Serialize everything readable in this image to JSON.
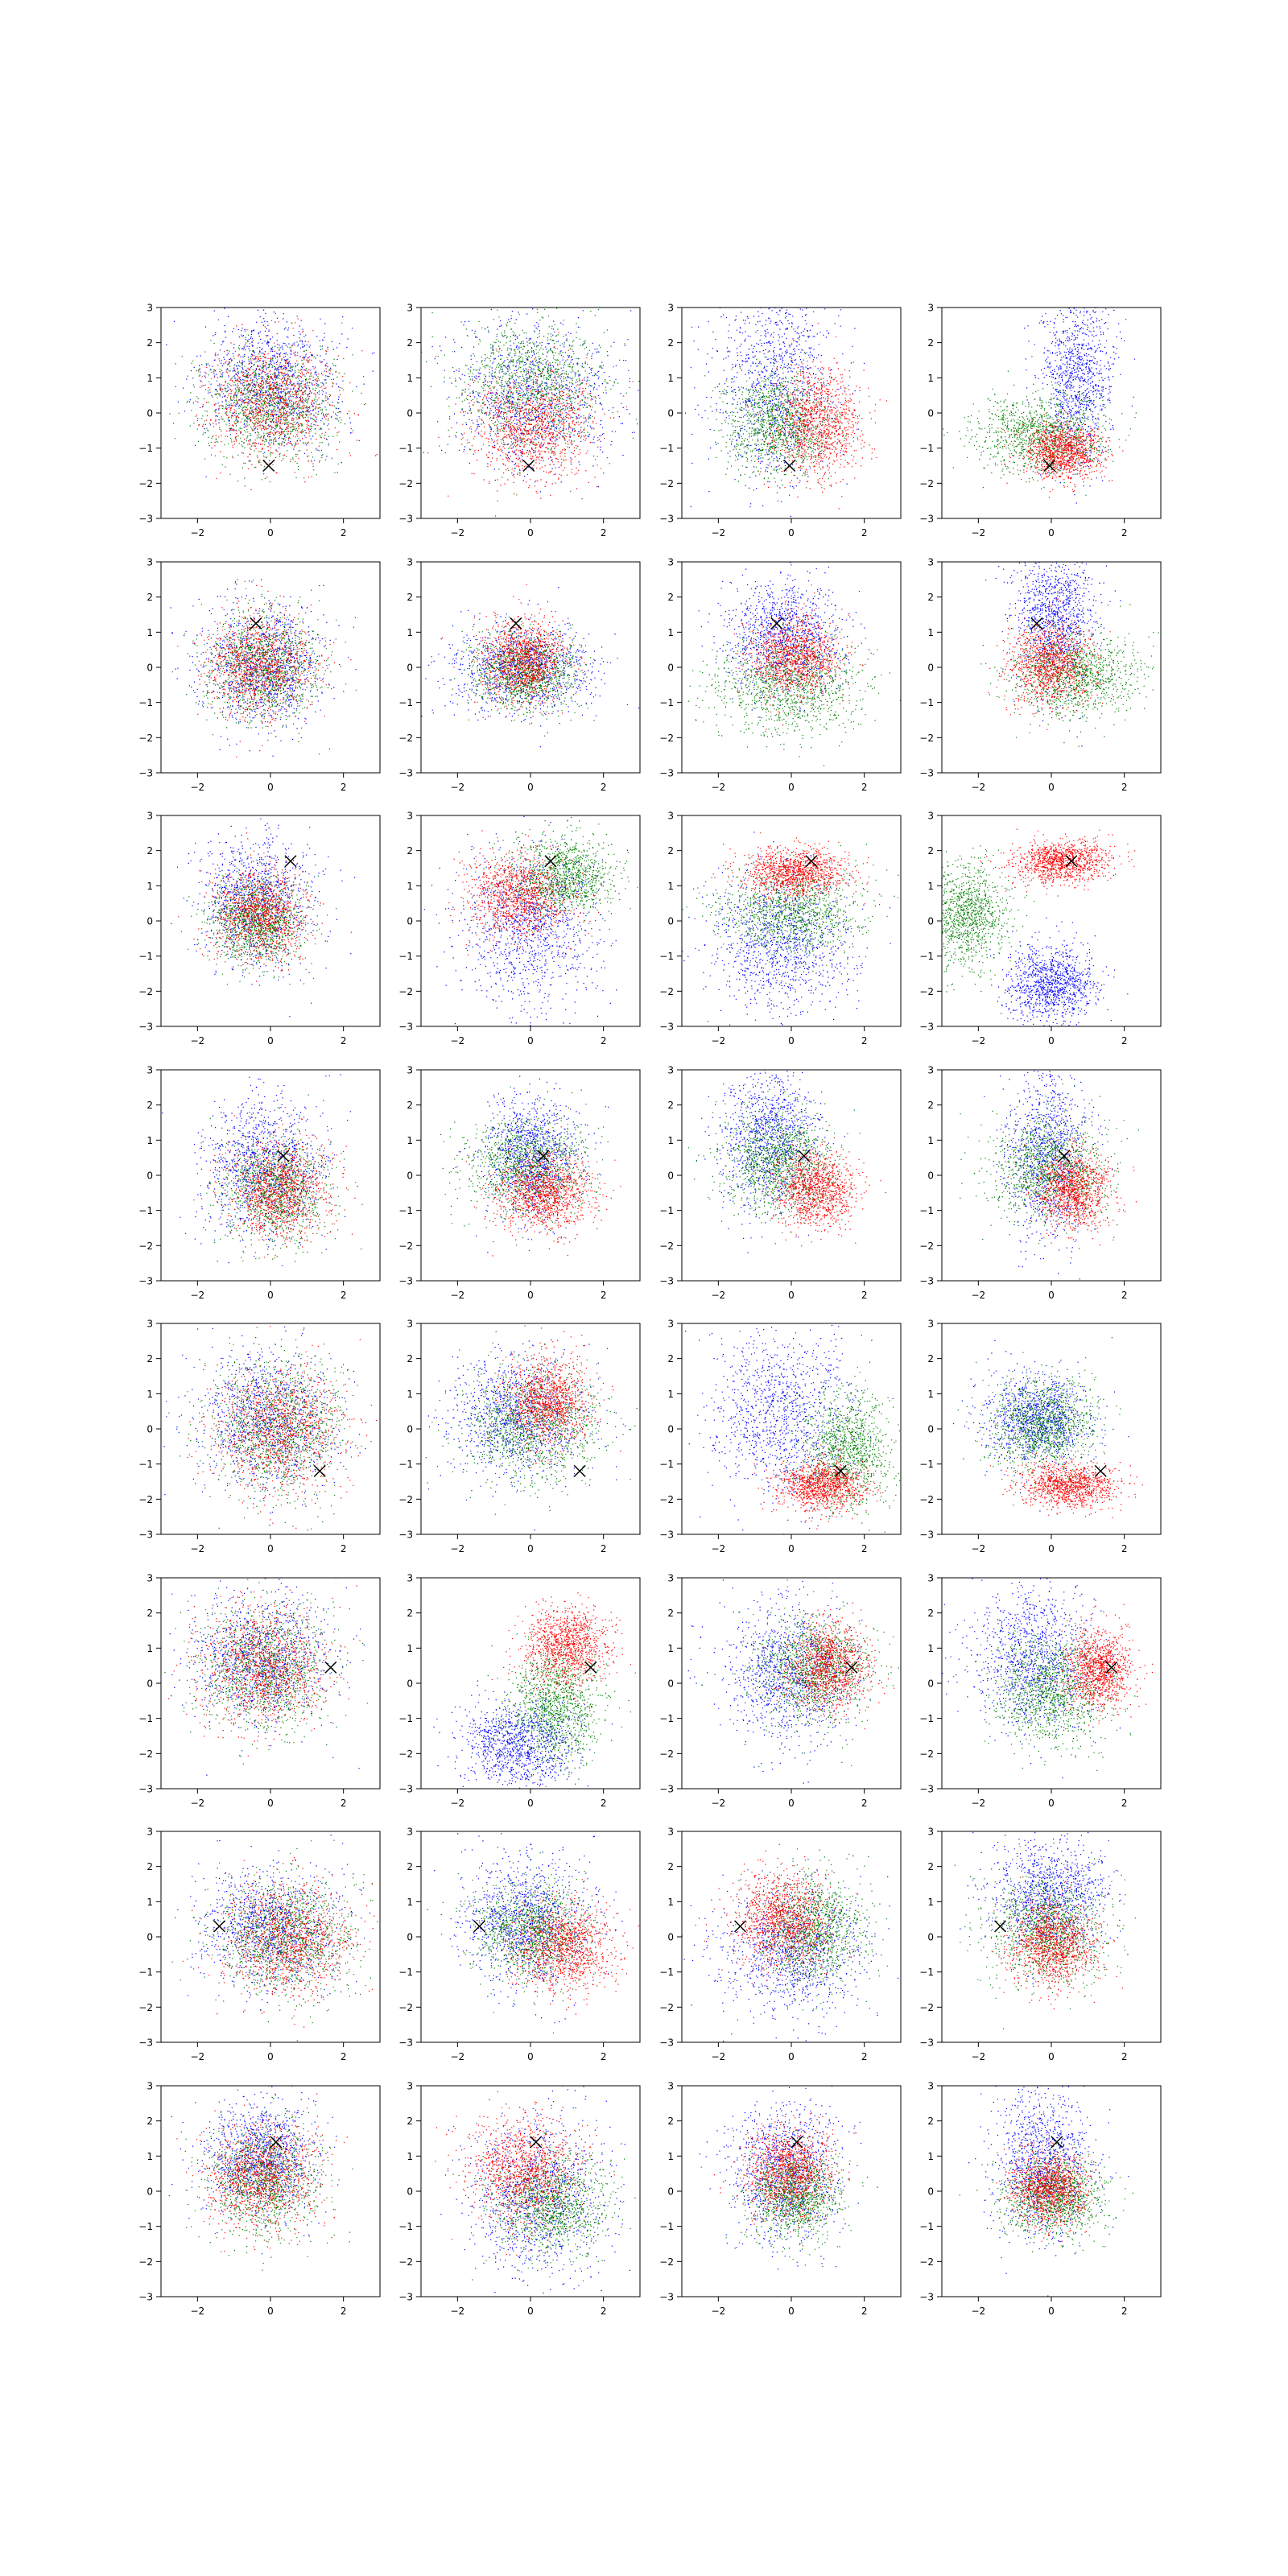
{
  "chart_data": {
    "type": "scatter",
    "layout": {
      "rows": 8,
      "cols": 4
    },
    "xlim": [
      -3,
      3
    ],
    "ylim": [
      -3,
      3
    ],
    "xticks": [
      -2,
      0,
      2
    ],
    "yticks": [
      -3,
      -2,
      -1,
      0,
      1,
      2,
      3
    ],
    "grid": false,
    "series_colors": {
      "blue": "#0000ff",
      "green": "#008000",
      "red": "#ff0000"
    },
    "marker_color": "#000000",
    "points_per_cluster": 1100,
    "panels": [
      {
        "marker": [
          -0.05,
          -1.5
        ],
        "clusters": [
          {
            "color": "blue",
            "cx": 0.0,
            "cy": 0.9,
            "sx": 0.9,
            "sy": 0.9
          },
          {
            "color": "green",
            "cx": 0.0,
            "cy": 0.2,
            "sx": 0.9,
            "sy": 0.8
          },
          {
            "color": "red",
            "cx": 0.0,
            "cy": 0.3,
            "sx": 0.85,
            "sy": 0.8
          }
        ]
      },
      {
        "marker": [
          -0.05,
          -1.5
        ],
        "clusters": [
          {
            "color": "blue",
            "cx": 0.1,
            "cy": 0.5,
            "sx": 1.1,
            "sy": 1.0
          },
          {
            "color": "green",
            "cx": 0.0,
            "cy": 0.9,
            "sx": 1.0,
            "sy": 0.9
          },
          {
            "color": "red",
            "cx": 0.0,
            "cy": -0.4,
            "sx": 0.85,
            "sy": 0.75
          }
        ]
      },
      {
        "marker": [
          -0.05,
          -1.5
        ],
        "clusters": [
          {
            "color": "blue",
            "cx": -0.5,
            "cy": 0.9,
            "sx": 0.8,
            "sy": 1.4
          },
          {
            "color": "green",
            "cx": -0.4,
            "cy": -0.3,
            "sx": 0.7,
            "sy": 0.7
          },
          {
            "color": "red",
            "cx": 0.7,
            "cy": -0.3,
            "sx": 0.6,
            "sy": 0.75
          }
        ]
      },
      {
        "marker": [
          -0.05,
          -1.5
        ],
        "clusters": [
          {
            "color": "blue",
            "cx": 0.7,
            "cy": 1.2,
            "sx": 0.5,
            "sy": 1.3
          },
          {
            "color": "green",
            "cx": -0.3,
            "cy": -0.6,
            "sx": 0.85,
            "sy": 0.55
          },
          {
            "color": "red",
            "cx": 0.3,
            "cy": -1.1,
            "sx": 0.55,
            "sy": 0.4
          }
        ]
      },
      {
        "marker": [
          -0.4,
          1.25
        ],
        "clusters": [
          {
            "color": "blue",
            "cx": -0.2,
            "cy": 0.1,
            "sx": 0.85,
            "sy": 0.85
          },
          {
            "color": "green",
            "cx": -0.2,
            "cy": 0.0,
            "sx": 0.75,
            "sy": 0.75
          },
          {
            "color": "red",
            "cx": -0.3,
            "cy": 0.1,
            "sx": 0.75,
            "sy": 0.75
          }
        ]
      },
      {
        "marker": [
          -0.4,
          1.25
        ],
        "clusters": [
          {
            "color": "blue",
            "cx": -0.2,
            "cy": 0.0,
            "sx": 1.0,
            "sy": 0.6
          },
          {
            "color": "green",
            "cx": -0.2,
            "cy": -0.1,
            "sx": 0.7,
            "sy": 0.55
          },
          {
            "color": "red",
            "cx": -0.2,
            "cy": 0.2,
            "sx": 0.55,
            "sy": 0.6
          }
        ]
      },
      {
        "marker": [
          -0.4,
          1.25
        ],
        "clusters": [
          {
            "color": "blue",
            "cx": -0.2,
            "cy": 0.9,
            "sx": 0.8,
            "sy": 0.8
          },
          {
            "color": "green",
            "cx": -0.1,
            "cy": -0.5,
            "sx": 1.0,
            "sy": 0.7
          },
          {
            "color": "red",
            "cx": 0.1,
            "cy": 0.3,
            "sx": 0.6,
            "sy": 0.55
          }
        ]
      },
      {
        "marker": [
          -0.4,
          1.25
        ],
        "clusters": [
          {
            "color": "blue",
            "cx": 0.1,
            "cy": 1.5,
            "sx": 0.55,
            "sy": 1.0
          },
          {
            "color": "green",
            "cx": 0.6,
            "cy": -0.2,
            "sx": 0.9,
            "sy": 0.6
          },
          {
            "color": "red",
            "cx": 0.0,
            "cy": 0.1,
            "sx": 0.55,
            "sy": 0.6
          }
        ]
      },
      {
        "marker": [
          0.55,
          1.7
        ],
        "clusters": [
          {
            "color": "blue",
            "cx": -0.4,
            "cy": 0.6,
            "sx": 0.75,
            "sy": 0.9
          },
          {
            "color": "green",
            "cx": -0.4,
            "cy": 0.0,
            "sx": 0.65,
            "sy": 0.6
          },
          {
            "color": "red",
            "cx": -0.3,
            "cy": 0.2,
            "sx": 0.65,
            "sy": 0.65
          }
        ]
      },
      {
        "marker": [
          0.55,
          1.7
        ],
        "clusters": [
          {
            "color": "blue",
            "cx": 0.0,
            "cy": -0.2,
            "sx": 0.9,
            "sy": 1.1
          },
          {
            "color": "green",
            "cx": 0.9,
            "cy": 1.3,
            "sx": 0.7,
            "sy": 0.55
          },
          {
            "color": "red",
            "cx": -0.3,
            "cy": 0.7,
            "sx": 0.7,
            "sy": 0.6
          }
        ]
      },
      {
        "marker": [
          0.55,
          1.7
        ],
        "clusters": [
          {
            "color": "blue",
            "cx": -0.3,
            "cy": -0.6,
            "sx": 1.0,
            "sy": 1.0
          },
          {
            "color": "green",
            "cx": 0.0,
            "cy": 0.3,
            "sx": 1.0,
            "sy": 0.6
          },
          {
            "color": "red",
            "cx": 0.1,
            "cy": 1.4,
            "sx": 0.7,
            "sy": 0.35
          }
        ]
      },
      {
        "marker": [
          0.55,
          1.7
        ],
        "clusters": [
          {
            "color": "blue",
            "cx": 0.0,
            "cy": -1.8,
            "sx": 0.6,
            "sy": 0.55
          },
          {
            "color": "green",
            "cx": -2.3,
            "cy": 0.2,
            "sx": 0.55,
            "sy": 0.75
          },
          {
            "color": "red",
            "cx": 0.3,
            "cy": 1.7,
            "sx": 0.65,
            "sy": 0.3
          }
        ]
      },
      {
        "marker": [
          0.35,
          0.55
        ],
        "clusters": [
          {
            "color": "blue",
            "cx": -0.2,
            "cy": 0.3,
            "sx": 0.85,
            "sy": 0.95
          },
          {
            "color": "green",
            "cx": 0.1,
            "cy": -0.4,
            "sx": 0.7,
            "sy": 0.7
          },
          {
            "color": "red",
            "cx": 0.2,
            "cy": -0.4,
            "sx": 0.7,
            "sy": 0.7
          }
        ]
      },
      {
        "marker": [
          0.35,
          0.55
        ],
        "clusters": [
          {
            "color": "blue",
            "cx": 0.0,
            "cy": 0.6,
            "sx": 0.65,
            "sy": 0.8
          },
          {
            "color": "green",
            "cx": -0.1,
            "cy": 0.3,
            "sx": 0.8,
            "sy": 0.65
          },
          {
            "color": "red",
            "cx": 0.4,
            "cy": -0.5,
            "sx": 0.65,
            "sy": 0.55
          }
        ]
      },
      {
        "marker": [
          0.35,
          0.55
        ],
        "clusters": [
          {
            "color": "blue",
            "cx": -0.6,
            "cy": 1.0,
            "sx": 0.65,
            "sy": 1.0
          },
          {
            "color": "green",
            "cx": -0.4,
            "cy": 0.4,
            "sx": 0.75,
            "sy": 0.7
          },
          {
            "color": "red",
            "cx": 0.7,
            "cy": -0.4,
            "sx": 0.55,
            "sy": 0.55
          }
        ]
      },
      {
        "marker": [
          0.35,
          0.55
        ],
        "clusters": [
          {
            "color": "blue",
            "cx": -0.1,
            "cy": 0.6,
            "sx": 0.55,
            "sy": 1.2
          },
          {
            "color": "green",
            "cx": -0.1,
            "cy": 0.2,
            "sx": 0.8,
            "sy": 0.7
          },
          {
            "color": "red",
            "cx": 0.6,
            "cy": -0.4,
            "sx": 0.5,
            "sy": 0.55
          }
        ]
      },
      {
        "marker": [
          1.35,
          -1.2
        ],
        "clusters": [
          {
            "color": "blue",
            "cx": -0.1,
            "cy": 0.2,
            "sx": 0.95,
            "sy": 0.95
          },
          {
            "color": "green",
            "cx": 0.2,
            "cy": 0.0,
            "sx": 0.9,
            "sy": 0.9
          },
          {
            "color": "red",
            "cx": 0.2,
            "cy": 0.0,
            "sx": 0.9,
            "sy": 0.9
          }
        ]
      },
      {
        "marker": [
          1.35,
          -1.2
        ],
        "clusters": [
          {
            "color": "blue",
            "cx": -0.4,
            "cy": 0.3,
            "sx": 0.9,
            "sy": 0.85
          },
          {
            "color": "green",
            "cx": 0.1,
            "cy": 0.1,
            "sx": 0.9,
            "sy": 0.8
          },
          {
            "color": "red",
            "cx": 0.5,
            "cy": 0.8,
            "sx": 0.55,
            "sy": 0.6
          }
        ]
      },
      {
        "marker": [
          1.35,
          -1.2
        ],
        "clusters": [
          {
            "color": "blue",
            "cx": -0.3,
            "cy": 0.5,
            "sx": 0.95,
            "sy": 1.2
          },
          {
            "color": "green",
            "cx": 1.5,
            "cy": -0.6,
            "sx": 0.6,
            "sy": 0.8
          },
          {
            "color": "red",
            "cx": 0.8,
            "cy": -1.6,
            "sx": 0.6,
            "sy": 0.35
          }
        ]
      },
      {
        "marker": [
          1.35,
          -1.2
        ],
        "clusters": [
          {
            "color": "blue",
            "cx": -0.4,
            "cy": 0.3,
            "sx": 0.7,
            "sy": 0.65
          },
          {
            "color": "green",
            "cx": -0.2,
            "cy": 0.1,
            "sx": 0.7,
            "sy": 0.65
          },
          {
            "color": "red",
            "cx": 0.5,
            "cy": -1.6,
            "sx": 0.65,
            "sy": 0.3
          }
        ]
      },
      {
        "marker": [
          1.65,
          0.45
        ],
        "clusters": [
          {
            "color": "blue",
            "cx": -0.3,
            "cy": 0.7,
            "sx": 0.9,
            "sy": 0.9
          },
          {
            "color": "green",
            "cx": -0.1,
            "cy": 0.4,
            "sx": 0.85,
            "sy": 0.85
          },
          {
            "color": "red",
            "cx": -0.2,
            "cy": 0.5,
            "sx": 0.85,
            "sy": 0.85
          }
        ]
      },
      {
        "marker": [
          1.65,
          0.45
        ],
        "clusters": [
          {
            "color": "blue",
            "cx": -0.3,
            "cy": -1.7,
            "sx": 0.8,
            "sy": 0.6
          },
          {
            "color": "green",
            "cx": 0.7,
            "cy": -0.6,
            "sx": 0.65,
            "sy": 0.8
          },
          {
            "color": "red",
            "cx": 1.0,
            "cy": 1.1,
            "sx": 0.6,
            "sy": 0.55
          }
        ]
      },
      {
        "marker": [
          1.65,
          0.45
        ],
        "clusters": [
          {
            "color": "blue",
            "cx": -0.1,
            "cy": 0.3,
            "sx": 0.9,
            "sy": 1.0
          },
          {
            "color": "green",
            "cx": 0.6,
            "cy": 0.4,
            "sx": 0.8,
            "sy": 0.75
          },
          {
            "color": "red",
            "cx": 1.0,
            "cy": 0.5,
            "sx": 0.55,
            "sy": 0.6
          }
        ]
      },
      {
        "marker": [
          1.65,
          0.45
        ],
        "clusters": [
          {
            "color": "blue",
            "cx": -0.5,
            "cy": 0.7,
            "sx": 0.8,
            "sy": 1.0
          },
          {
            "color": "green",
            "cx": 0.0,
            "cy": -0.2,
            "sx": 0.75,
            "sy": 0.75
          },
          {
            "color": "red",
            "cx": 1.3,
            "cy": 0.4,
            "sx": 0.45,
            "sy": 0.55
          }
        ]
      },
      {
        "marker": [
          -1.4,
          0.3
        ],
        "clusters": [
          {
            "color": "blue",
            "cx": 0.0,
            "cy": 0.3,
            "sx": 0.95,
            "sy": 0.85
          },
          {
            "color": "green",
            "cx": 0.4,
            "cy": 0.0,
            "sx": 0.9,
            "sy": 0.8
          },
          {
            "color": "red",
            "cx": 0.5,
            "cy": -0.1,
            "sx": 0.85,
            "sy": 0.8
          }
        ]
      },
      {
        "marker": [
          -1.4,
          0.3
        ],
        "clusters": [
          {
            "color": "blue",
            "cx": -0.1,
            "cy": 0.5,
            "sx": 0.85,
            "sy": 0.95
          },
          {
            "color": "green",
            "cx": 0.0,
            "cy": 0.2,
            "sx": 0.8,
            "sy": 0.7
          },
          {
            "color": "red",
            "cx": 0.9,
            "cy": -0.3,
            "sx": 0.7,
            "sy": 0.6
          }
        ]
      },
      {
        "marker": [
          -1.4,
          0.3
        ],
        "clusters": [
          {
            "color": "blue",
            "cx": 0.0,
            "cy": -0.4,
            "sx": 0.95,
            "sy": 0.9
          },
          {
            "color": "green",
            "cx": 0.6,
            "cy": 0.2,
            "sx": 0.7,
            "sy": 0.75
          },
          {
            "color": "red",
            "cx": -0.3,
            "cy": 0.5,
            "sx": 0.65,
            "sy": 0.65
          }
        ]
      },
      {
        "marker": [
          -1.4,
          0.3
        ],
        "clusters": [
          {
            "color": "blue",
            "cx": 0.0,
            "cy": 1.2,
            "sx": 0.8,
            "sy": 0.8
          },
          {
            "color": "green",
            "cx": -0.1,
            "cy": 0.2,
            "sx": 0.8,
            "sy": 0.7
          },
          {
            "color": "red",
            "cx": 0.0,
            "cy": -0.2,
            "sx": 0.55,
            "sy": 0.6
          }
        ]
      },
      {
        "marker": [
          0.15,
          1.4
        ],
        "clusters": [
          {
            "color": "blue",
            "cx": -0.3,
            "cy": 1.0,
            "sx": 0.75,
            "sy": 0.8
          },
          {
            "color": "green",
            "cx": -0.2,
            "cy": 0.3,
            "sx": 0.75,
            "sy": 0.75
          },
          {
            "color": "red",
            "cx": -0.2,
            "cy": 0.4,
            "sx": 0.75,
            "sy": 0.75
          }
        ]
      },
      {
        "marker": [
          0.15,
          1.4
        ],
        "clusters": [
          {
            "color": "blue",
            "cx": 0.2,
            "cy": -0.2,
            "sx": 0.9,
            "sy": 1.1
          },
          {
            "color": "green",
            "cx": 0.6,
            "cy": -0.4,
            "sx": 0.75,
            "sy": 0.7
          },
          {
            "color": "red",
            "cx": -0.2,
            "cy": 0.6,
            "sx": 0.75,
            "sy": 0.75
          }
        ]
      },
      {
        "marker": [
          0.15,
          1.4
        ],
        "clusters": [
          {
            "color": "blue",
            "cx": -0.2,
            "cy": 0.6,
            "sx": 0.75,
            "sy": 1.0
          },
          {
            "color": "green",
            "cx": 0.1,
            "cy": -0.1,
            "sx": 0.6,
            "sy": 0.6
          },
          {
            "color": "red",
            "cx": -0.1,
            "cy": 0.6,
            "sx": 0.6,
            "sy": 0.6
          }
        ]
      },
      {
        "marker": [
          0.15,
          1.4
        ],
        "clusters": [
          {
            "color": "blue",
            "cx": -0.2,
            "cy": 0.9,
            "sx": 0.65,
            "sy": 1.1
          },
          {
            "color": "green",
            "cx": 0.1,
            "cy": -0.1,
            "sx": 0.7,
            "sy": 0.55
          },
          {
            "color": "red",
            "cx": -0.1,
            "cy": 0.1,
            "sx": 0.5,
            "sy": 0.5
          }
        ]
      }
    ]
  }
}
